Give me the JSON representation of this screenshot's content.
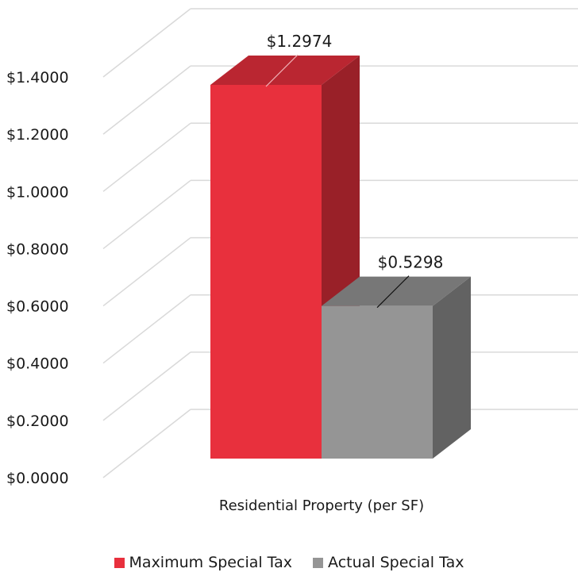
{
  "chart_data": {
    "type": "bar",
    "style": "3d-clustered-column",
    "categories": [
      "Residential Property (per SF)"
    ],
    "series": [
      {
        "name": "Maximum Special Tax",
        "values": [
          1.2974
        ],
        "color": "#e8303d",
        "label": "$1.2974"
      },
      {
        "name": "Actual Special Tax",
        "values": [
          0.5298
        ],
        "color": "#959595",
        "label": "$0.5298"
      }
    ],
    "ylim": [
      0,
      1.4
    ],
    "y_ticks": [
      "$0.0000",
      "$0.2000",
      "$0.4000",
      "$0.6000",
      "$0.8000",
      "$1.0000",
      "$1.2000",
      "$1.4000"
    ],
    "grid": true,
    "legend_position": "bottom"
  }
}
